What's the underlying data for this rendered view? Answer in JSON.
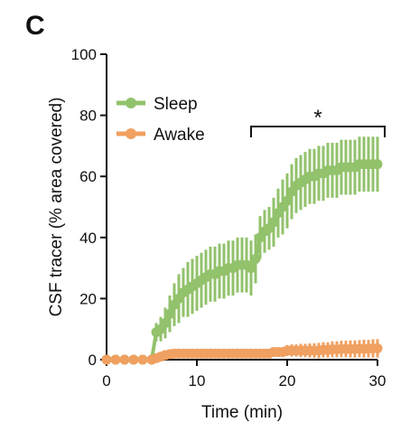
{
  "panel_label": "C",
  "chart_data": {
    "type": "line",
    "xlabel": "Time (min)",
    "ylabel": "CSF tracer (% area covered)",
    "xlim": [
      0,
      30
    ],
    "ylim": [
      0,
      100
    ],
    "x_ticks": [
      0,
      10,
      20,
      30
    ],
    "y_ticks": [
      0,
      20,
      40,
      60,
      80,
      100
    ],
    "grid": false,
    "legend_position": "top-left",
    "significance": {
      "label": "*",
      "x_range": [
        16,
        30
      ]
    },
    "series": [
      {
        "name": "Sleep",
        "color": "#92c26b",
        "x": [
          0,
          1,
          2,
          3,
          4,
          5,
          5.5,
          6,
          6.5,
          7,
          7.5,
          8,
          8.5,
          9,
          9.5,
          10,
          10.5,
          11,
          11.5,
          12,
          12.5,
          13,
          13.5,
          14,
          14.5,
          15,
          15.5,
          16,
          16.5,
          17,
          17.5,
          18,
          18.5,
          19,
          19.5,
          20,
          20.5,
          21,
          21.5,
          22,
          22.5,
          23,
          23.5,
          24,
          24.5,
          25,
          25.5,
          26,
          26.5,
          27,
          27.5,
          28,
          28.5,
          29,
          29.5,
          30
        ],
        "y": [
          0,
          0,
          0,
          0,
          0,
          0,
          9,
          10,
          12,
          15,
          18,
          20,
          22,
          23,
          24,
          25,
          26,
          27,
          28,
          28,
          29,
          29,
          30,
          30,
          31,
          31,
          31,
          30,
          33,
          40,
          42,
          43,
          45,
          48,
          50,
          52,
          55,
          57,
          58,
          59,
          60,
          60,
          61,
          61,
          62,
          62,
          62,
          63,
          63,
          63,
          63,
          64,
          64,
          64,
          64,
          64
        ],
        "err": [
          0,
          0,
          0,
          0,
          0,
          0,
          3,
          4,
          5,
          6,
          7,
          8,
          8,
          9,
          9,
          9,
          9,
          9,
          9,
          9,
          9,
          9,
          9,
          9,
          9,
          9,
          9,
          9,
          8,
          7,
          7,
          7,
          8,
          8,
          9,
          9,
          9,
          9,
          9,
          9,
          9,
          9,
          9,
          9,
          9,
          9,
          9,
          9,
          9,
          9,
          9,
          9,
          9,
          9,
          9,
          9
        ]
      },
      {
        "name": "Awake",
        "color": "#f0a060",
        "x": [
          0,
          1,
          2,
          3,
          4,
          5,
          5.5,
          6,
          6.5,
          7,
          7.5,
          8,
          8.5,
          9,
          9.5,
          10,
          10.5,
          11,
          11.5,
          12,
          12.5,
          13,
          13.5,
          14,
          14.5,
          15,
          15.5,
          16,
          16.5,
          17,
          17.5,
          18,
          18.5,
          19,
          19.5,
          20,
          20.5,
          21,
          21.5,
          22,
          22.5,
          23,
          23.5,
          24,
          24.5,
          25,
          25.5,
          26,
          26.5,
          27,
          27.5,
          28,
          28.5,
          29,
          29.5,
          30
        ],
        "y": [
          0,
          0,
          0,
          0,
          0,
          0,
          0.5,
          1,
          1.5,
          1.8,
          2,
          2,
          2,
          2,
          2,
          2,
          2,
          2,
          2,
          2,
          2,
          2,
          2,
          2,
          2,
          2,
          2,
          2,
          2,
          2,
          2,
          2,
          2.5,
          2.5,
          2.5,
          3,
          3,
          3,
          3,
          3,
          3,
          3,
          3,
          3.2,
          3.2,
          3.4,
          3.4,
          3.5,
          3.5,
          3.5,
          3.5,
          3.6,
          3.6,
          3.6,
          3.7,
          3.7
        ],
        "err": [
          0,
          0,
          0,
          0,
          0,
          0,
          0.5,
          0.8,
          1,
          1,
          1.2,
          1.2,
          1.2,
          1.2,
          1.2,
          1.2,
          1.2,
          1.2,
          1.2,
          1.2,
          1.2,
          1.2,
          1.2,
          1.2,
          1.2,
          1.2,
          1.2,
          1.2,
          1.2,
          1.2,
          1.2,
          1.2,
          1.4,
          1.5,
          1.6,
          1.8,
          2,
          2,
          2.2,
          2.2,
          2.3,
          2.4,
          2.5,
          2.5,
          2.5,
          2.6,
          2.6,
          2.7,
          2.7,
          2.8,
          2.8,
          2.8,
          2.9,
          2.9,
          3,
          3
        ]
      }
    ]
  }
}
